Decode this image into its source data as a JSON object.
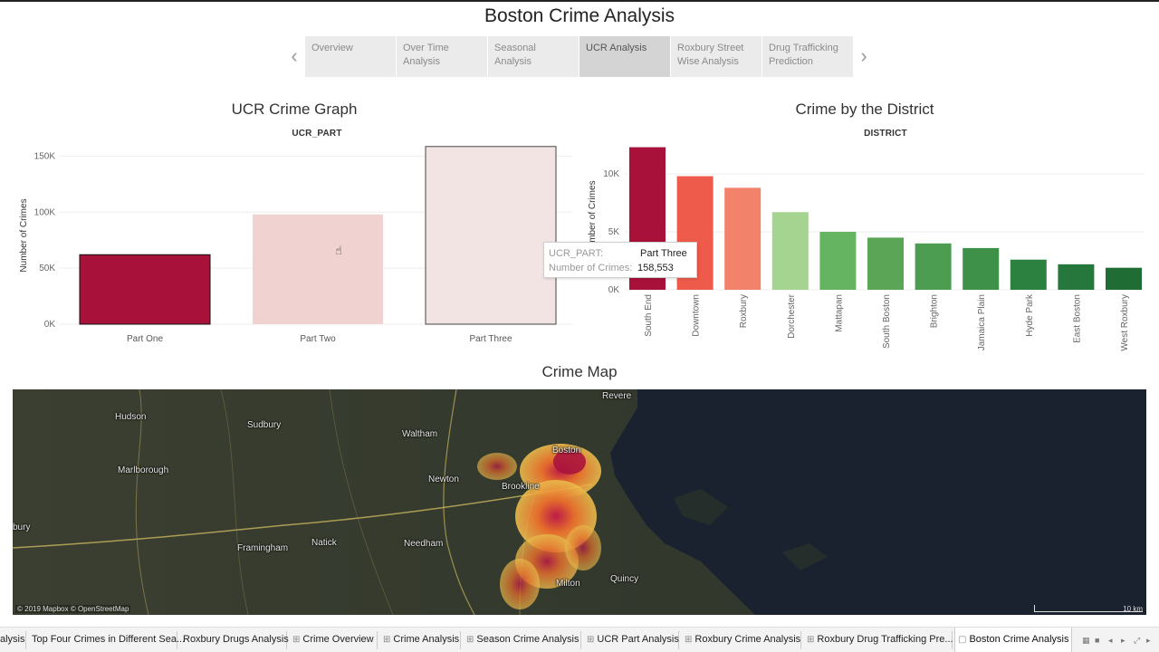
{
  "title": "Boston Crime Analysis",
  "nav": {
    "prev_icon": "chevron-left-icon",
    "next_icon": "chevron-right-icon",
    "tabs": [
      {
        "label": "Overview",
        "active": false
      },
      {
        "label": "Over Time\nAnalysis",
        "active": false
      },
      {
        "label": "Seasonal Analysis",
        "active": false
      },
      {
        "label": "UCR Analysis",
        "active": true
      },
      {
        "label": "Roxbury Street\nWise Analysis",
        "active": false
      },
      {
        "label": "Drug Trafficking\nPrediction",
        "active": false
      }
    ]
  },
  "ucr_chart": {
    "title": "UCR Crime Graph",
    "subtitle": "UCR_PART",
    "ylabel": "Number of Crimes",
    "y_ticks": [
      "0K",
      "50K",
      "100K",
      "150K"
    ]
  },
  "district_chart": {
    "title": "Crime by the District",
    "subtitle": "DISTRICT",
    "ylabel": "Number of Crimes",
    "y_ticks": [
      "0K",
      "5K",
      "10K"
    ]
  },
  "tooltip": {
    "key1": "UCR_PART:",
    "val1": "Part Three",
    "key2": "Number of Crimes:",
    "val2": "158,553"
  },
  "map": {
    "title": "Crime Map",
    "credit": "© 2019 Mapbox © OpenStreetMap",
    "scale": "10 km",
    "labels": [
      {
        "text": "Revere"
      },
      {
        "text": "Hudson"
      },
      {
        "text": "Sudbury"
      },
      {
        "text": "Waltham"
      },
      {
        "text": "Boston"
      },
      {
        "text": "Marlborough"
      },
      {
        "text": "Newton"
      },
      {
        "text": "Brookline"
      },
      {
        "text": "bury"
      },
      {
        "text": "Framingham"
      },
      {
        "text": "Natick"
      },
      {
        "text": "Needham"
      },
      {
        "text": "Quincy"
      },
      {
        "text": "Milton"
      }
    ],
    "colors": {
      "land": "#34392d",
      "water": "#1a2230",
      "heat_low": "#f9c74f",
      "heat_mid": "#f3722c",
      "heat_high": "#c9184a"
    }
  },
  "chart_data": [
    {
      "type": "bar",
      "title": "UCR Crime Graph",
      "xlabel": "UCR_PART",
      "ylabel": "Number of Crimes",
      "categories": [
        "Part One",
        "Part Two",
        "Part Three"
      ],
      "values": [
        62000,
        98000,
        158553
      ],
      "ylim": [
        0,
        160000
      ],
      "colors": [
        "#a8123a",
        "#f0d2d0",
        "#f3e4e4"
      ],
      "grid": true
    },
    {
      "type": "bar",
      "title": "Crime by the District",
      "xlabel": "DISTRICT",
      "ylabel": "Number of Crimes",
      "categories": [
        "South End",
        "Downtown",
        "Roxbury",
        "Dorchester",
        "Mattapan",
        "South Boston",
        "Brighton",
        "Jamaica Plain",
        "Hyde Park",
        "East Boston",
        "West Roxbury"
      ],
      "values": [
        12300,
        9800,
        8800,
        6700,
        5000,
        4500,
        4000,
        3600,
        2600,
        2200,
        1900
      ],
      "ylim": [
        0,
        12500
      ],
      "colors": [
        "#a8123a",
        "#ef5b4b",
        "#f2826a",
        "#a4d48f",
        "#65b462",
        "#5aa656",
        "#4c9d51",
        "#3e9149",
        "#2d8140",
        "#26773b",
        "#1f6d35"
      ],
      "grid": true
    }
  ],
  "bottom_tabs": {
    "items": [
      {
        "label": "alysis",
        "icon": ""
      },
      {
        "label": "Top Four Crimes in Different Sea...",
        "icon": ""
      },
      {
        "label": "Roxbury Drugs Analysis",
        "icon": ""
      },
      {
        "label": "Crime Overview",
        "icon": "⊞"
      },
      {
        "label": "Crime Analysis",
        "icon": "⊞"
      },
      {
        "label": "Season Crime Analysis",
        "icon": "⊞"
      },
      {
        "label": "UCR Part Analysis",
        "icon": "⊞"
      },
      {
        "label": "Roxbury Crime Analysis",
        "icon": "⊞"
      },
      {
        "label": "Roxbury Drug Trafficking Pre...",
        "icon": "⊞"
      },
      {
        "label": "Boston Crime Analysis",
        "icon": "▢"
      }
    ]
  }
}
